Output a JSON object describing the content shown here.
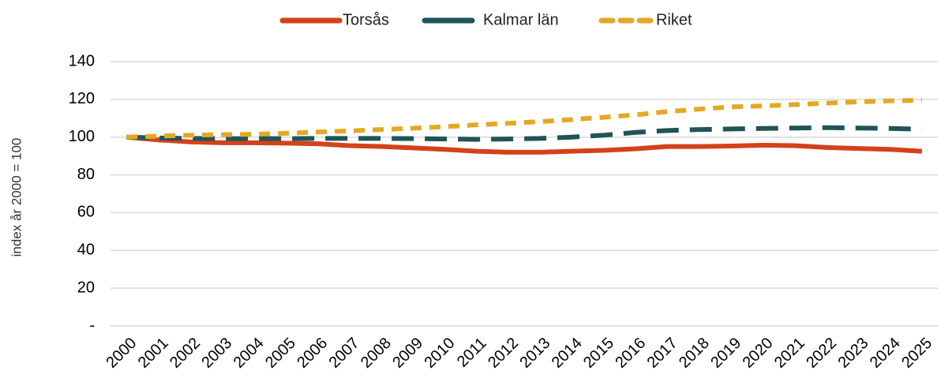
{
  "chart_data": {
    "type": "line",
    "y_label": "index år 2000 = 100",
    "categories": [
      "2000",
      "2001",
      "2002",
      "2003",
      "2004",
      "2005",
      "2006",
      "2007",
      "2008",
      "2009",
      "2010",
      "2011",
      "2012",
      "2013",
      "2014",
      "2015",
      "2016",
      "2017",
      "2018",
      "2019",
      "2020",
      "2021",
      "2022",
      "2023",
      "2024",
      "2025"
    ],
    "series": [
      {
        "name": "Torsås",
        "color": "#d4421a",
        "dash": "solid",
        "values": [
          100,
          98.5,
          97.5,
          97,
          97,
          96.8,
          96.5,
          95.5,
          95,
          94.3,
          93.5,
          92.5,
          92,
          92,
          92.5,
          93,
          93.8,
          95,
          95,
          95.3,
          95.7,
          95.5,
          94.5,
          94,
          93.5,
          92.5
        ]
      },
      {
        "name": "Kalmar län",
        "color": "#1f5559",
        "dash": "long",
        "values": [
          100,
          99.5,
          99.3,
          99.2,
          99.2,
          99.2,
          99.3,
          99.3,
          99.3,
          99.2,
          99,
          98.8,
          99,
          99.3,
          100,
          101,
          102.5,
          103.5,
          104,
          104.3,
          104.6,
          104.8,
          105,
          104.8,
          104.6,
          104.2
        ]
      },
      {
        "name": "Riket",
        "color": "#e5a825",
        "dash": "short",
        "values": [
          100,
          100.5,
          101,
          101.3,
          101.5,
          102,
          102.7,
          103.3,
          104,
          104.7,
          105.5,
          106.5,
          107.3,
          108.2,
          109.3,
          110.5,
          111.8,
          113.5,
          114.8,
          116,
          116.5,
          117.2,
          118,
          118.7,
          119.2,
          119.5
        ]
      }
    ],
    "ylim": [
      0,
      140
    ],
    "yticks": [
      {
        "value": 0,
        "label": "-"
      },
      20,
      40,
      60,
      80,
      100,
      120,
      140
    ],
    "grid": true,
    "legend": "top"
  }
}
